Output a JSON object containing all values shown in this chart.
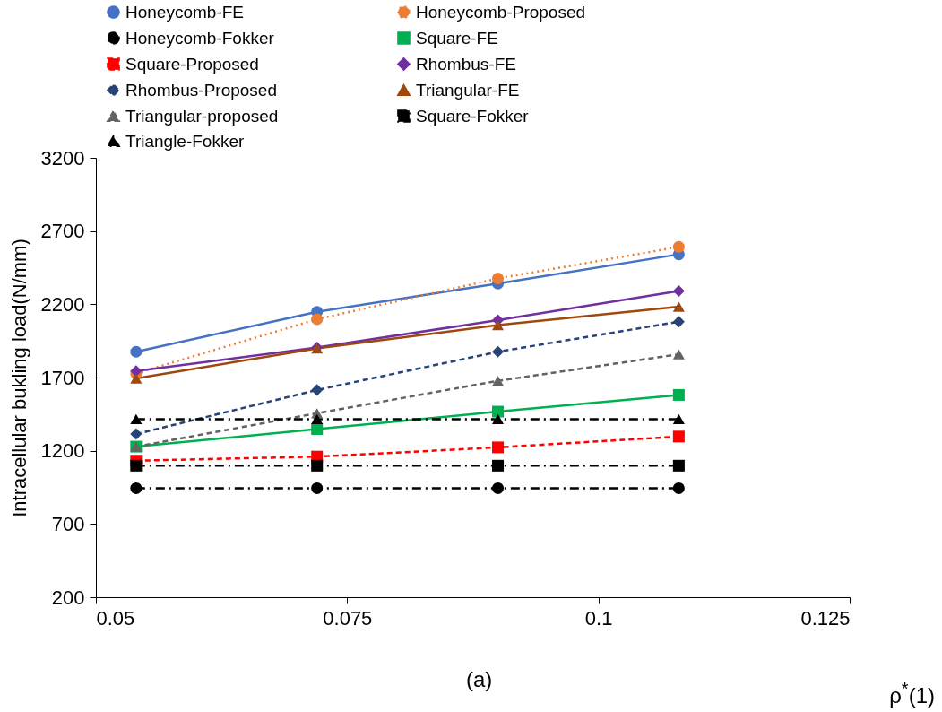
{
  "chart_data": {
    "type": "line",
    "xlabel": "ρ$^{*}$(1)",
    "ylabel": "Intracellular bukling load(N/mm)",
    "annotations": [
      "(a)"
    ],
    "x": [
      0.054,
      0.072,
      0.09,
      0.108
    ],
    "xlim": [
      0.05,
      0.125
    ],
    "xticks": [
      0.05,
      0.075,
      0.1,
      0.125
    ],
    "ylim": [
      200,
      3200
    ],
    "yticks": [
      200,
      700,
      1200,
      1700,
      2200,
      2700,
      3200
    ],
    "grid": false,
    "legend": "top",
    "series": [
      {
        "name": "Honeycomb-FE",
        "color": "#4472c4",
        "marker": "circle",
        "line_style": "solid",
        "values": [
          1876,
          2149,
          2342,
          2541
        ]
      },
      {
        "name": "Honeycomb-Proposed",
        "color": "#ed7d31",
        "marker": "circle",
        "line_style": "dotted",
        "values": [
          1728,
          2098,
          2376,
          2592
        ]
      },
      {
        "name": "Honeycomb-Fokker",
        "color": "#000000",
        "marker": "circle",
        "line_style": "dashdot",
        "values": [
          944,
          944,
          944,
          944
        ]
      },
      {
        "name": "Square-FE",
        "color": "#00b050",
        "marker": "square",
        "line_style": "solid",
        "values": [
          1228,
          1348,
          1467,
          1581
        ]
      },
      {
        "name": "Square-Proposed",
        "color": "#ff0000",
        "marker": "square",
        "line_style": "dashed",
        "values": [
          1132,
          1160,
          1223,
          1297
        ]
      },
      {
        "name": "Rhombus-FE",
        "color": "#7030a0",
        "marker": "diamond",
        "line_style": "solid",
        "values": [
          1745,
          1905,
          2092,
          2291
        ]
      },
      {
        "name": "Rhombus-Proposed",
        "color": "#264478",
        "marker": "diamond",
        "line_style": "dashed",
        "values": [
          1314,
          1615,
          1876,
          2081
        ]
      },
      {
        "name": "Triangular-FE",
        "color": "#9e480e",
        "marker": "triangle",
        "line_style": "solid",
        "values": [
          1694,
          1899,
          2058,
          2183
        ]
      },
      {
        "name": "Triangular-proposed",
        "color": "#636363",
        "marker": "triangle",
        "line_style": "dashed",
        "values": [
          1228,
          1456,
          1677,
          1859
        ]
      },
      {
        "name": "Square-Fokker",
        "color": "#000000",
        "marker": "square",
        "line_style": "dashdot",
        "values": [
          1098,
          1098,
          1098,
          1098
        ]
      },
      {
        "name": "Triangle-Fokker",
        "color": "#000000",
        "marker": "triangle",
        "line_style": "dashdot",
        "values": [
          1416,
          1416,
          1416,
          1416
        ]
      }
    ]
  }
}
